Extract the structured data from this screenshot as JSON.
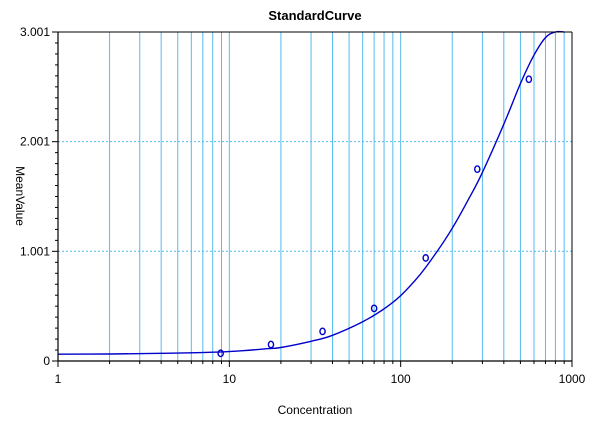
{
  "chart_data": {
    "type": "scatter",
    "title": "StandardCurve",
    "xlabel": "Concentration",
    "ylabel": "MeanValue",
    "xscale": "log",
    "xlim": [
      1,
      1000
    ],
    "ylim": [
      0,
      3.001
    ],
    "x_ticks": [
      1,
      10,
      100,
      1000
    ],
    "x_tick_labels": [
      "1",
      "10",
      "100",
      "1000"
    ],
    "y_ticks": [
      0,
      1.001,
      2.001,
      3.001
    ],
    "y_tick_labels": [
      "0",
      "1.001",
      "2.001",
      "3.001"
    ],
    "grid": true,
    "colors": {
      "series": "#0000cc",
      "grid": "#55bbee",
      "axis": "#000000"
    },
    "series": [
      {
        "type": "scatter",
        "marker": "circle",
        "x": [
          8.9,
          17.5,
          35,
          70,
          140,
          280,
          560
        ],
        "y": [
          0.07,
          0.15,
          0.27,
          0.48,
          0.94,
          1.75,
          2.57
        ]
      },
      {
        "type": "line",
        "x": [
          1,
          2,
          4,
          8,
          12,
          16,
          20,
          30,
          40,
          60,
          80,
          100,
          130,
          160,
          200,
          250,
          300,
          400,
          500,
          600,
          700,
          800,
          900
        ],
        "y": [
          0.062,
          0.064,
          0.07,
          0.08,
          0.094,
          0.11,
          0.123,
          0.18,
          0.234,
          0.358,
          0.476,
          0.597,
          0.79,
          0.98,
          1.21,
          1.48,
          1.72,
          2.16,
          2.53,
          2.79,
          2.95,
          3.001,
          3.001
        ]
      }
    ]
  }
}
